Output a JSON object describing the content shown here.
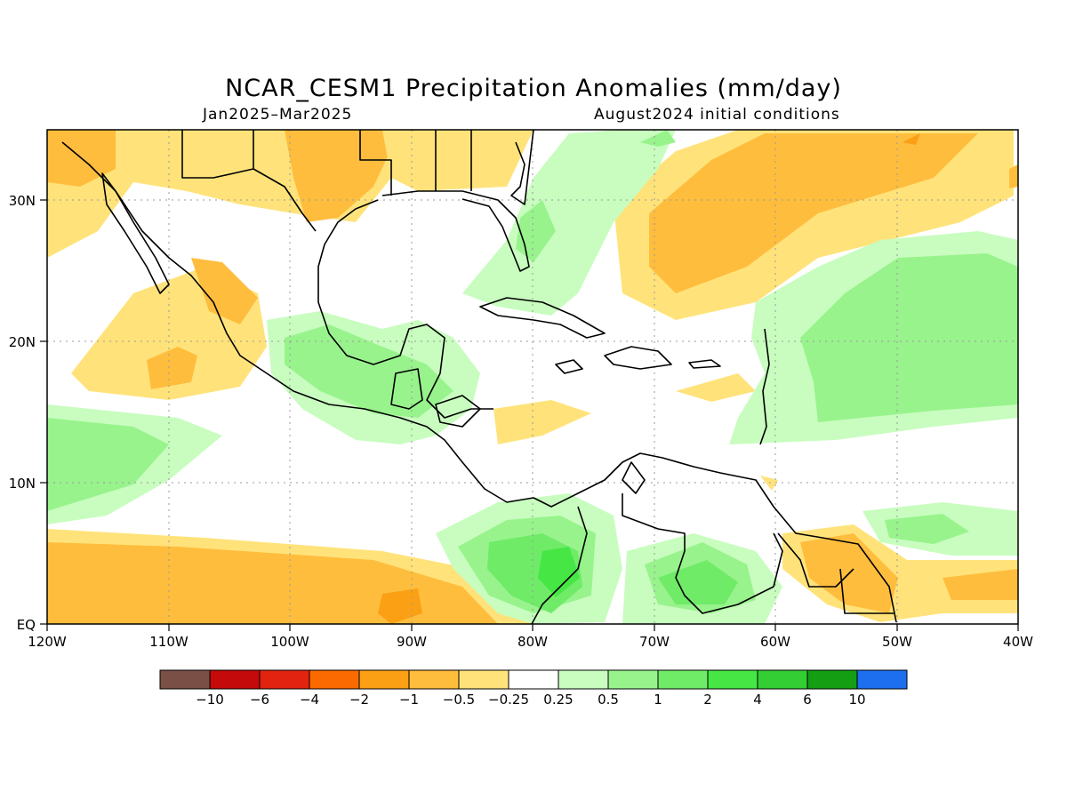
{
  "title": "NCAR_CESM1 Precipitation Anomalies (mm/day)",
  "subtitle_left": "Jan2025–Mar2025",
  "subtitle_right": "August2024 initial conditions",
  "map": {
    "lon_range": [
      -120,
      -40
    ],
    "lat_range": [
      0,
      35
    ],
    "lon_ticks": [
      "120W",
      "110W",
      "100W",
      "90W",
      "80W",
      "70W",
      "60W",
      "50W",
      "40W"
    ],
    "lat_ticks": [
      "EQ",
      "10N",
      "20N",
      "30N"
    ],
    "grid": true
  },
  "colorbar": {
    "labels": [
      "−10",
      "−6",
      "−4",
      "−2",
      "−1",
      "−0.5",
      "−0.25",
      "0.25",
      "0.5",
      "1",
      "2",
      "4",
      "6",
      "10"
    ],
    "colors": [
      "#7a4f46",
      "#c40a0a",
      "#e2230f",
      "#fa6a00",
      "#fba014",
      "#ffbd3e",
      "#ffe37a",
      "#ffffff",
      "#c8fdbf",
      "#98f38c",
      "#6feb68",
      "#46e645",
      "#33ce33",
      "#149e14",
      "#1d6ff0"
    ]
  },
  "colors": {
    "neg_025": "#ffe37a",
    "neg_05": "#ffbd3e",
    "neg_1": "#fba014",
    "pos_025": "#c8fdbf",
    "pos_05": "#98f38c",
    "pos_1": "#6feb68",
    "pos_2": "#46e645"
  }
}
